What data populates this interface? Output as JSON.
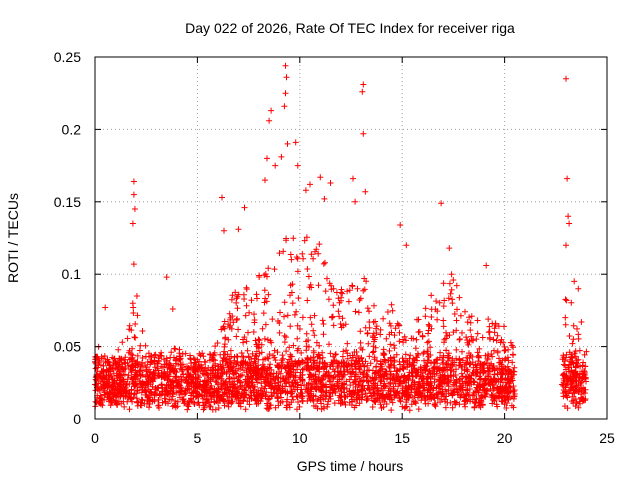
{
  "chart_data": {
    "type": "scatter",
    "title": "Day 022 of 2026, Rate Of TEC Index for receiver riga",
    "xlabel": "GPS time / hours",
    "ylabel": "ROTI / TECUs",
    "xlim": [
      0,
      25
    ],
    "ylim": [
      0,
      0.25
    ],
    "x_ticks": [
      "0",
      "5",
      "10",
      "15",
      "20",
      "25"
    ],
    "y_ticks": [
      "0",
      "0.05",
      "0.1",
      "0.15",
      "0.2",
      "0.25"
    ],
    "grid": true,
    "marker": "+",
    "series_color": "#ff0000",
    "data_gaps_hours": [
      [
        20.5,
        22.8
      ]
    ],
    "envelope": {
      "x": [
        0,
        0.5,
        1,
        1.5,
        2,
        2.5,
        3,
        3.5,
        4,
        4.5,
        5,
        5.5,
        6,
        6.5,
        7,
        7.5,
        8,
        8.5,
        9,
        9.5,
        10,
        10.5,
        11,
        11.5,
        12,
        12.5,
        13,
        13.5,
        14,
        14.5,
        15,
        15.5,
        16,
        16.5,
        17,
        17.5,
        18,
        18.5,
        19,
        19.5,
        20,
        20.5,
        22.8,
        23,
        23.5,
        24
      ],
      "typical_max": [
        0.05,
        0.05,
        0.045,
        0.06,
        0.09,
        0.05,
        0.045,
        0.045,
        0.05,
        0.045,
        0.04,
        0.045,
        0.06,
        0.08,
        0.095,
        0.09,
        0.1,
        0.11,
        0.12,
        0.13,
        0.12,
        0.13,
        0.12,
        0.1,
        0.09,
        0.1,
        0.1,
        0.09,
        0.07,
        0.08,
        0.06,
        0.06,
        0.08,
        0.09,
        0.1,
        0.1,
        0.08,
        0.07,
        0.08,
        0.07,
        0.07,
        0.05,
        0.06,
        0.09,
        0.08,
        0.06
      ]
    },
    "spikes": [
      {
        "x": 0.5,
        "y": 0.077
      },
      {
        "x": 1.9,
        "y": 0.164
      },
      {
        "x": 1.9,
        "y": 0.155
      },
      {
        "x": 1.95,
        "y": 0.145
      },
      {
        "x": 1.85,
        "y": 0.135
      },
      {
        "x": 1.9,
        "y": 0.107
      },
      {
        "x": 3.5,
        "y": 0.098
      },
      {
        "x": 3.8,
        "y": 0.076
      },
      {
        "x": 6.2,
        "y": 0.153
      },
      {
        "x": 6.3,
        "y": 0.13
      },
      {
        "x": 7.3,
        "y": 0.146
      },
      {
        "x": 7.0,
        "y": 0.131
      },
      {
        "x": 8.5,
        "y": 0.206
      },
      {
        "x": 8.6,
        "y": 0.213
      },
      {
        "x": 8.4,
        "y": 0.18
      },
      {
        "x": 8.3,
        "y": 0.165
      },
      {
        "x": 8.8,
        "y": 0.175
      },
      {
        "x": 9.3,
        "y": 0.244
      },
      {
        "x": 9.35,
        "y": 0.236
      },
      {
        "x": 9.3,
        "y": 0.225
      },
      {
        "x": 9.25,
        "y": 0.216
      },
      {
        "x": 9.4,
        "y": 0.19
      },
      {
        "x": 9.1,
        "y": 0.181
      },
      {
        "x": 9.8,
        "y": 0.191
      },
      {
        "x": 9.9,
        "y": 0.175
      },
      {
        "x": 10.3,
        "y": 0.158
      },
      {
        "x": 10.5,
        "y": 0.162
      },
      {
        "x": 11.0,
        "y": 0.167
      },
      {
        "x": 11.5,
        "y": 0.163
      },
      {
        "x": 11.2,
        "y": 0.152
      },
      {
        "x": 12.6,
        "y": 0.166
      },
      {
        "x": 12.7,
        "y": 0.15
      },
      {
        "x": 13.1,
        "y": 0.231
      },
      {
        "x": 13.05,
        "y": 0.226
      },
      {
        "x": 13.1,
        "y": 0.197
      },
      {
        "x": 13.2,
        "y": 0.157
      },
      {
        "x": 14.9,
        "y": 0.134
      },
      {
        "x": 15.2,
        "y": 0.12
      },
      {
        "x": 16.9,
        "y": 0.149
      },
      {
        "x": 17.3,
        "y": 0.118
      },
      {
        "x": 19.1,
        "y": 0.106
      },
      {
        "x": 23.0,
        "y": 0.235
      },
      {
        "x": 23.05,
        "y": 0.166
      },
      {
        "x": 23.1,
        "y": 0.14
      },
      {
        "x": 23.15,
        "y": 0.135
      },
      {
        "x": 23.0,
        "y": 0.12
      },
      {
        "x": 23.4,
        "y": 0.095
      },
      {
        "x": 23.6,
        "y": 0.09
      }
    ]
  }
}
